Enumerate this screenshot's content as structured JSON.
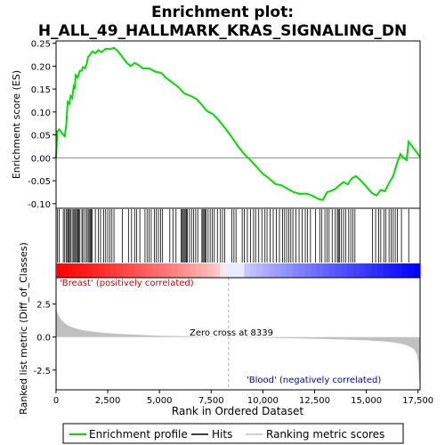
{
  "chart_data": {
    "type": "line",
    "title_line1": "Enrichment plot:",
    "title_line2": "H_ALL_49_HALLMARK_KRAS_SIGNALING_DN",
    "top_panel": {
      "ylabel": "Enrichment score (ES)",
      "ylim": [
        -0.11,
        0.255
      ],
      "yticks": [
        -0.1,
        -0.05,
        0.0,
        0.05,
        0.1,
        0.15,
        0.2,
        0.25
      ],
      "ytick_labels": [
        "-0.10",
        "-0.05",
        "0.00",
        "0.05",
        "0.10",
        "0.15",
        "0.20",
        "0.25"
      ],
      "series_name": "Enrichment profile",
      "color": "#00dd00",
      "es_curve": [
        [
          0,
          0.0
        ],
        [
          60,
          0.058
        ],
        [
          150,
          0.062
        ],
        [
          350,
          0.05
        ],
        [
          420,
          0.047
        ],
        [
          500,
          0.075
        ],
        [
          560,
          0.122
        ],
        [
          650,
          0.118
        ],
        [
          700,
          0.135
        ],
        [
          780,
          0.13
        ],
        [
          850,
          0.155
        ],
        [
          900,
          0.15
        ],
        [
          950,
          0.18
        ],
        [
          1050,
          0.175
        ],
        [
          1150,
          0.19
        ],
        [
          1250,
          0.19
        ],
        [
          1300,
          0.198
        ],
        [
          1400,
          0.195
        ],
        [
          1480,
          0.205
        ],
        [
          1550,
          0.22
        ],
        [
          1650,
          0.225
        ],
        [
          1750,
          0.232
        ],
        [
          1900,
          0.228
        ],
        [
          2050,
          0.235
        ],
        [
          2200,
          0.23
        ],
        [
          2400,
          0.238
        ],
        [
          2600,
          0.237
        ],
        [
          2800,
          0.24
        ],
        [
          3000,
          0.232
        ],
        [
          3200,
          0.22
        ],
        [
          3400,
          0.208
        ],
        [
          3600,
          0.2
        ],
        [
          3800,
          0.207
        ],
        [
          4000,
          0.202
        ],
        [
          4200,
          0.195
        ],
        [
          4500,
          0.195
        ],
        [
          4800,
          0.188
        ],
        [
          5100,
          0.185
        ],
        [
          5300,
          0.175
        ],
        [
          5600,
          0.165
        ],
        [
          5900,
          0.155
        ],
        [
          6200,
          0.14
        ],
        [
          6500,
          0.135
        ],
        [
          6800,
          0.128
        ],
        [
          7000,
          0.118
        ],
        [
          7300,
          0.102
        ],
        [
          7600,
          0.095
        ],
        [
          7900,
          0.08
        ],
        [
          8200,
          0.063
        ],
        [
          8500,
          0.045
        ],
        [
          8800,
          0.025
        ],
        [
          9100,
          0.008
        ],
        [
          9400,
          -0.005
        ],
        [
          9700,
          -0.02
        ],
        [
          10000,
          -0.035
        ],
        [
          10300,
          -0.045
        ],
        [
          10600,
          -0.057
        ],
        [
          10900,
          -0.06
        ],
        [
          11200,
          -0.068
        ],
        [
          11500,
          -0.075
        ],
        [
          11800,
          -0.079
        ],
        [
          12100,
          -0.078
        ],
        [
          12400,
          -0.083
        ],
        [
          12700,
          -0.09
        ],
        [
          12900,
          -0.092
        ],
        [
          13100,
          -0.075
        ],
        [
          13300,
          -0.072
        ],
        [
          13500,
          -0.068
        ],
        [
          13700,
          -0.06
        ],
        [
          13900,
          -0.053
        ],
        [
          14100,
          -0.058
        ],
        [
          14300,
          -0.045
        ],
        [
          14500,
          -0.04
        ],
        [
          14700,
          -0.048
        ],
        [
          14900,
          -0.058
        ],
        [
          15100,
          -0.068
        ],
        [
          15300,
          -0.078
        ],
        [
          15500,
          -0.082
        ],
        [
          15700,
          -0.07
        ],
        [
          15900,
          -0.073
        ],
        [
          16100,
          -0.055
        ],
        [
          16300,
          -0.04
        ],
        [
          16500,
          -0.01
        ],
        [
          16650,
          0.008
        ],
        [
          16800,
          0.0
        ],
        [
          16950,
          -0.005
        ],
        [
          17050,
          0.035
        ],
        [
          17300,
          0.02
        ],
        [
          17600,
          0.002
        ]
      ]
    },
    "hits": [
      60,
      150,
      350,
      420,
      500,
      560,
      600,
      650,
      700,
      780,
      850,
      900,
      950,
      1000,
      1050,
      1100,
      1150,
      1250,
      1300,
      1400,
      1480,
      1550,
      1600,
      1650,
      1700,
      1750,
      1900,
      2050,
      2150,
      2300,
      2400,
      2500,
      2600,
      2700,
      2800,
      3200,
      3500,
      3650,
      3800,
      3900,
      4050,
      4300,
      4400,
      4500,
      4600,
      4750,
      4850,
      4950,
      5050,
      5150,
      5500,
      5650,
      5800,
      6050,
      6100,
      6150,
      6200,
      6250,
      6300,
      6350,
      6450,
      6550,
      6650,
      6750,
      6850,
      7050,
      7100,
      7150,
      7200,
      7250,
      7350,
      7450,
      7550,
      7650,
      7800,
      7950,
      8050,
      8150,
      8500,
      8600,
      8700,
      9000,
      9100,
      9250,
      9400,
      9550,
      9650,
      9800,
      9950,
      10100,
      10200,
      10350,
      10500,
      10650,
      10800,
      10950,
      11050,
      11150,
      11250,
      11350,
      11450,
      11600,
      11750,
      11900,
      12050,
      12150,
      12300,
      12550,
      12750,
      12850,
      13000,
      13100,
      13200,
      13350,
      13500,
      13600,
      13650,
      13700,
      13800,
      13900,
      14000,
      14150,
      14250,
      14350,
      14450,
      15300,
      15450,
      15600,
      15700,
      15850,
      15950,
      16100,
      16200,
      16300,
      16400,
      16500,
      16700,
      17050
    ],
    "bottom_panel": {
      "ylabel": "Ranked list metric (Diff_of_Classes)",
      "xlabel": "Rank in Ordered Dataset",
      "ylim": [
        -4.0,
        4.5
      ],
      "yticks": [
        -2.5,
        0.0,
        2.5
      ],
      "ytick_labels": [
        "-2.5",
        "0.0",
        "2.5"
      ],
      "fill_color": "#c0c0c0",
      "metric_curve": [
        [
          0,
          2.8
        ],
        [
          30,
          2.0
        ],
        [
          100,
          1.7
        ],
        [
          250,
          1.3
        ],
        [
          500,
          0.95
        ],
        [
          800,
          0.72
        ],
        [
          1200,
          0.55
        ],
        [
          1700,
          0.42
        ],
        [
          2300,
          0.32
        ],
        [
          3000,
          0.24
        ],
        [
          4000,
          0.16
        ],
        [
          5000,
          0.1
        ],
        [
          6000,
          0.06
        ],
        [
          7000,
          0.03
        ],
        [
          8339,
          0.0
        ],
        [
          9500,
          -0.03
        ],
        [
          11000,
          -0.08
        ],
        [
          12500,
          -0.13
        ],
        [
          14000,
          -0.19
        ],
        [
          15000,
          -0.25
        ],
        [
          16000,
          -0.35
        ],
        [
          16600,
          -0.48
        ],
        [
          17000,
          -0.65
        ],
        [
          17300,
          -0.9
        ],
        [
          17450,
          -1.3
        ],
        [
          17520,
          -2.0
        ],
        [
          17560,
          -3.0
        ],
        [
          17600,
          -4.0
        ]
      ],
      "label_positive": "'Breast' (positively correlated)",
      "label_negative": "'Blood' (negatively correlated)",
      "zero_cross_label": "Zero cross at 8339",
      "zero_cross": 8339
    },
    "xlim": [
      0,
      17600
    ],
    "xticks": [
      0,
      2500,
      5000,
      7500,
      10000,
      12500,
      15000,
      17500
    ],
    "xtick_labels": [
      "0",
      "2,500",
      "5,000",
      "7,500",
      "10,000",
      "12,500",
      "15,000",
      "17,500"
    ],
    "legend": [
      {
        "label": "Enrichment profile",
        "color": "#00dd00"
      },
      {
        "label": "Hits",
        "color": "#000000"
      },
      {
        "label": "Ranking metric scores",
        "color": "#c0c0c0"
      }
    ]
  }
}
